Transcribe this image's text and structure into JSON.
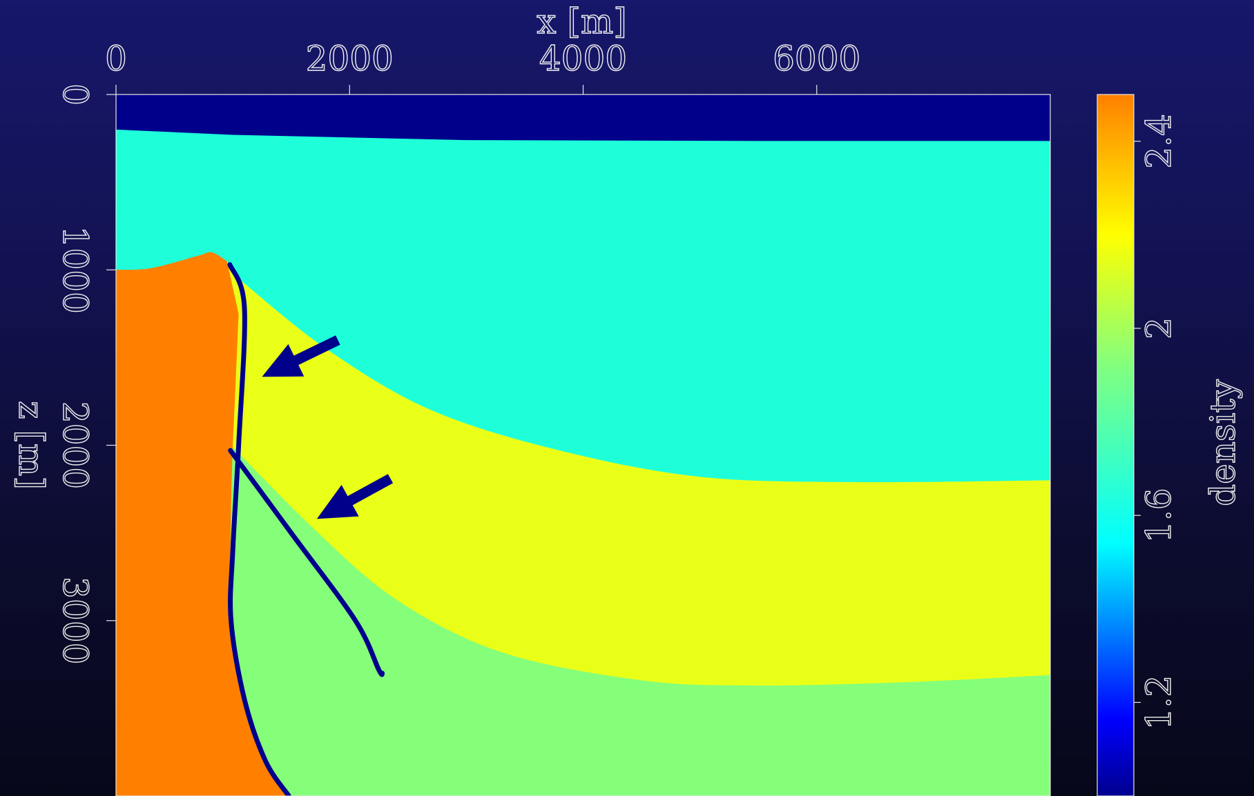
{
  "chart_data": {
    "type": "heatmap",
    "subtype": "density-model-image",
    "xlabel": "x [m]",
    "ylabel": "z [m]",
    "x_ticks": [
      0,
      2000,
      4000,
      6000
    ],
    "x_tick_labels": [
      "0",
      "2000",
      "4000",
      "6000"
    ],
    "y_ticks": [
      0,
      1000,
      2000,
      3000
    ],
    "y_tick_labels": [
      "0",
      "1000",
      "2000",
      "3000"
    ],
    "xlim": [
      0,
      8000
    ],
    "ylim": [
      4000,
      0
    ],
    "x_axis_position": "top",
    "colorbar": {
      "label": "density",
      "ticks": [
        1.2,
        1.6,
        2,
        2.4
      ],
      "tick_labels": [
        "1.2",
        "1.6",
        "2",
        "2.4"
      ],
      "range": [
        1.0,
        2.5
      ],
      "colormap": "jet"
    },
    "regions": [
      {
        "name": "water",
        "density": 1.0,
        "color": "#00008b"
      },
      {
        "name": "sediment-upper",
        "density": 1.75,
        "color": "#1effd9"
      },
      {
        "name": "sediment-middle",
        "density": 2.22,
        "color": "#eaff18"
      },
      {
        "name": "sediment-lower",
        "density": 1.95,
        "color": "#85ff7a"
      },
      {
        "name": "salt-body",
        "density": 2.5,
        "color": "#ff8000"
      }
    ],
    "boundaries": {
      "seafloor": {
        "x": [
          0,
          1000,
          3000,
          5500,
          8000
        ],
        "z": [
          200,
          230,
          260,
          265,
          265
        ]
      },
      "upper_to_middle": {
        "x": [
          1050,
          1800,
          2700,
          3800,
          5000,
          6300,
          8000
        ],
        "z": [
          1050,
          1450,
          1800,
          2030,
          2180,
          2210,
          2200
        ]
      },
      "middle_to_lower": {
        "x": [
          1000,
          1700,
          2400,
          3300,
          4500,
          5500,
          6800,
          8000
        ],
        "z": [
          2010,
          2480,
          2880,
          3180,
          3340,
          3370,
          3350,
          3310
        ]
      },
      "salt_top": {
        "x": [
          0,
          300,
          700,
          820,
          950
        ],
        "z": [
          1000,
          990,
          920,
          900,
          950
        ]
      },
      "salt_right_flank": {
        "x": [
          950,
          1050,
          1000,
          980,
          990,
          1100,
          1300,
          1480
        ],
        "z": [
          950,
          1250,
          2000,
          2600,
          3000,
          3450,
          3800,
          4000
        ]
      }
    },
    "highlighted_interfaces": [
      {
        "name": "salt-flank-interface",
        "x": [
          975,
          1100,
          1050,
          1000,
          985,
          1100,
          1280,
          1480
        ],
        "z": [
          970,
          1220,
          2000,
          2600,
          3000,
          3450,
          3800,
          4000
        ]
      },
      {
        "name": "inclusion-interface",
        "x": [
          980,
          1500,
          2050,
          2250,
          2280
        ],
        "z": [
          2030,
          2500,
          3000,
          3280,
          3300
        ]
      }
    ],
    "arrows": [
      {
        "from": [
          1900,
          1400
        ],
        "to": [
          1250,
          1610
        ]
      },
      {
        "from": [
          2350,
          2190
        ],
        "to": [
          1720,
          2420
        ]
      }
    ]
  }
}
